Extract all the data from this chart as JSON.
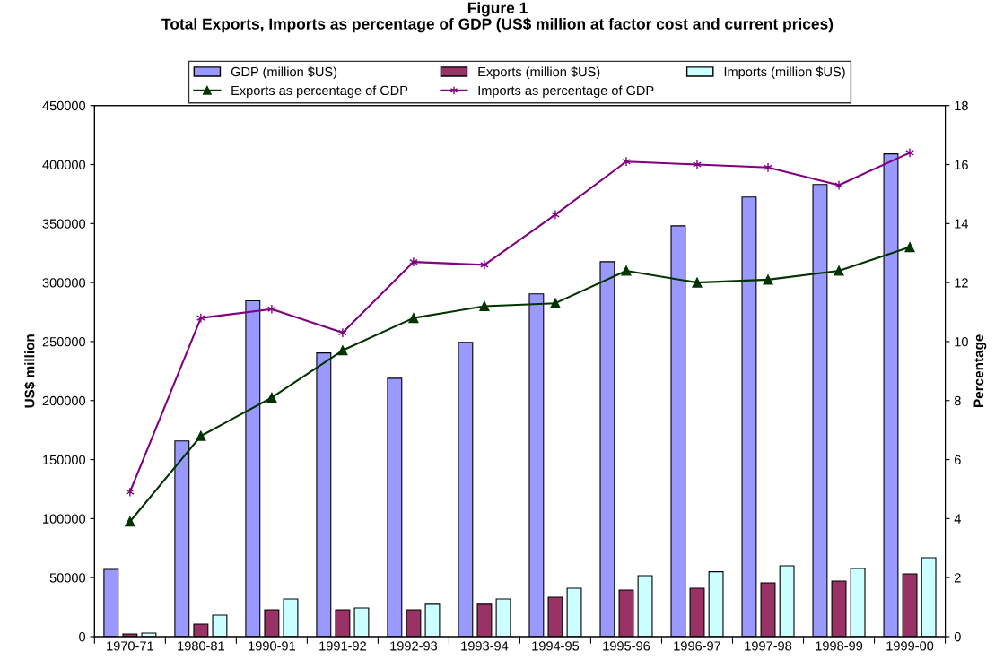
{
  "chart_data": {
    "type": "bar",
    "title": "Figure 1\nTotal Exports, Imports as percentage of GDP (US$ million at factor cost and current prices)",
    "ylabel": "US$ million",
    "y2label": "Percentage",
    "categories": [
      "1970-71",
      "1980-81",
      "1990-91",
      "1991-92",
      "1992-93",
      "1993-94",
      "1994-95",
      "1995-96",
      "1996-97",
      "1997-98",
      "1998-99",
      "1999-00"
    ],
    "series": [
      {
        "name": "GDP (million $US)",
        "color": "#9999ff",
        "values": [
          57000,
          165800,
          284500,
          240400,
          218900,
          249300,
          290400,
          317700,
          348100,
          372500,
          383100,
          409000
        ]
      },
      {
        "name": "Exports (million $US)",
        "color": "#993366",
        "values": [
          2300,
          10600,
          22800,
          22800,
          22800,
          27400,
          33400,
          39500,
          41000,
          45600,
          47100,
          53200
        ]
      },
      {
        "name": "Imports (million $US)",
        "color": "#ccffff",
        "values": [
          3000,
          18200,
          31900,
          24300,
          27400,
          31900,
          41000,
          51700,
          55000,
          60000,
          57800,
          66900
        ]
      },
      {
        "name": "Exports as percentage of GDP",
        "type": "line",
        "axis": "y2",
        "color": "#003300",
        "marker": "triangle",
        "values": [
          3.9,
          6.8,
          8.1,
          9.7,
          10.8,
          11.2,
          11.3,
          12.4,
          12.0,
          12.1,
          12.4,
          13.2
        ]
      },
      {
        "name": "Imports as percentage of GDP",
        "type": "line",
        "axis": "y2",
        "color": "#800080",
        "marker": "cross",
        "values": [
          4.9,
          10.8,
          11.1,
          10.3,
          12.7,
          12.6,
          14.3,
          16.1,
          16.0,
          15.9,
          15.3,
          16.4
        ]
      }
    ],
    "ylim": [
      0,
      450000
    ],
    "yticks": [
      0,
      50000,
      100000,
      150000,
      200000,
      250000,
      300000,
      350000,
      400000,
      450000
    ],
    "y2lim": [
      0,
      18
    ],
    "y2ticks": [
      0,
      2,
      4,
      6,
      8,
      10,
      12,
      14,
      16,
      18
    ],
    "grid": false,
    "legend": "top"
  }
}
